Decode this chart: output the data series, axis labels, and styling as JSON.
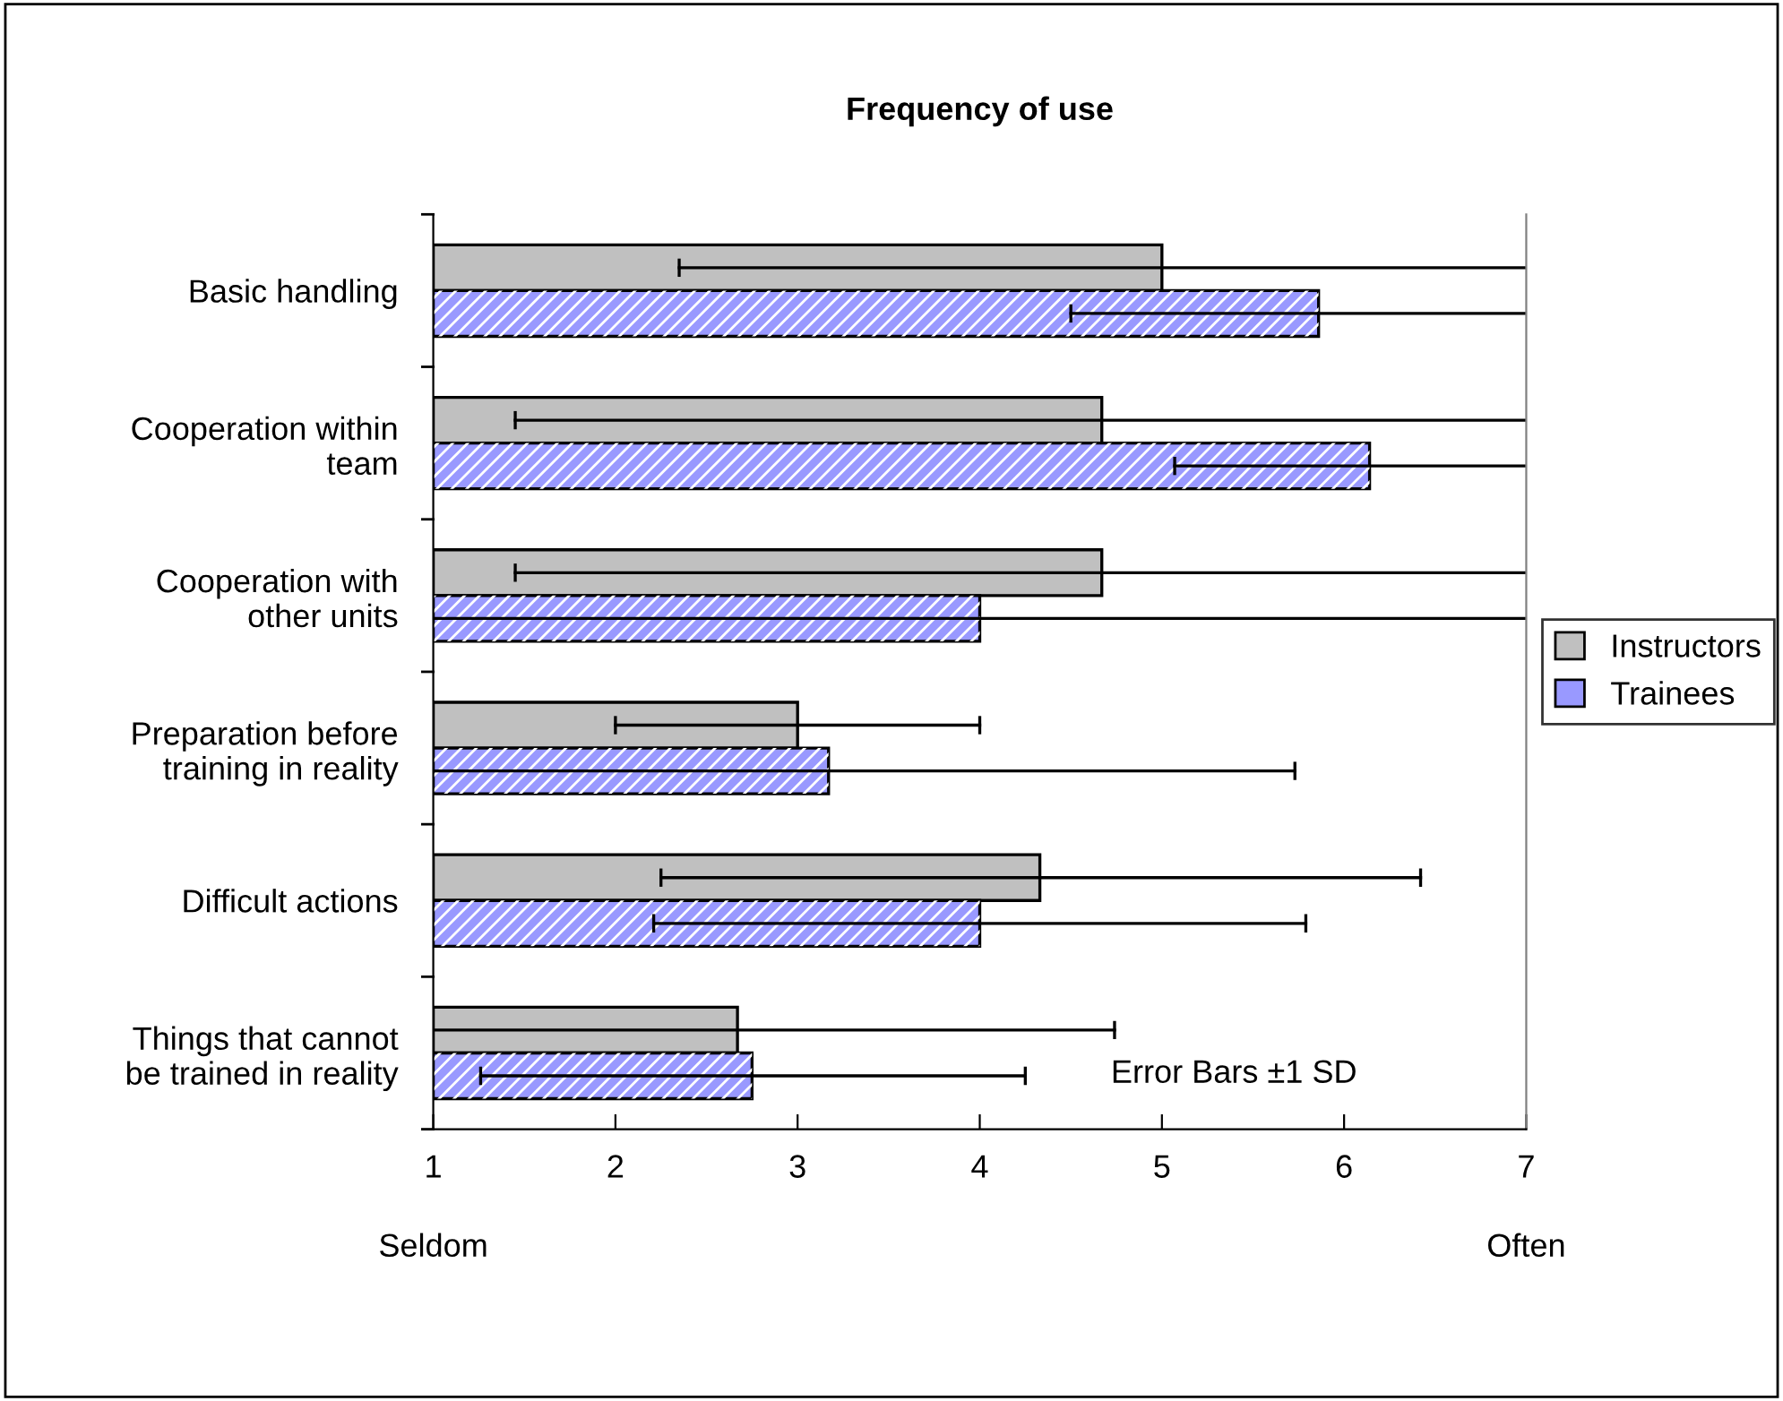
{
  "chart_data": {
    "type": "bar",
    "orientation": "horizontal",
    "title": "Frequency of use",
    "categories": [
      "Basic handling",
      "Cooperation within\nteam",
      "Cooperation with\nother units",
      "Preparation before\ntraining in reality",
      "Difficult actions",
      "Things that cannot\nbe trained in reality"
    ],
    "series": [
      {
        "name": "Instructors",
        "color": "#c0c0c0",
        "values": [
          5.0,
          4.67,
          4.67,
          3.0,
          4.33,
          2.67
        ],
        "errors": [
          [
            2.35,
            7
          ],
          [
            1.45,
            7
          ],
          [
            1.45,
            7
          ],
          [
            2.0,
            4.0
          ],
          [
            2.25,
            6.42
          ],
          [
            1,
            4.74
          ]
        ]
      },
      {
        "name": "Trainees",
        "color": "#9999ff",
        "values": [
          5.86,
          6.14,
          4.0,
          3.17,
          4.0,
          2.75
        ],
        "errors": [
          [
            4.5,
            7
          ],
          [
            5.07,
            7
          ],
          [
            1,
            7.0
          ],
          [
            1,
            5.73
          ],
          [
            2.21,
            5.79
          ],
          [
            1.26,
            4.25
          ]
        ]
      }
    ],
    "xlim": [
      1,
      7
    ],
    "xticks": [
      1,
      2,
      3,
      4,
      5,
      6,
      7
    ],
    "legend": "right",
    "grid": false,
    "annotations": [
      "Seldom",
      "Often",
      "Error Bars ±1 SD"
    ]
  }
}
